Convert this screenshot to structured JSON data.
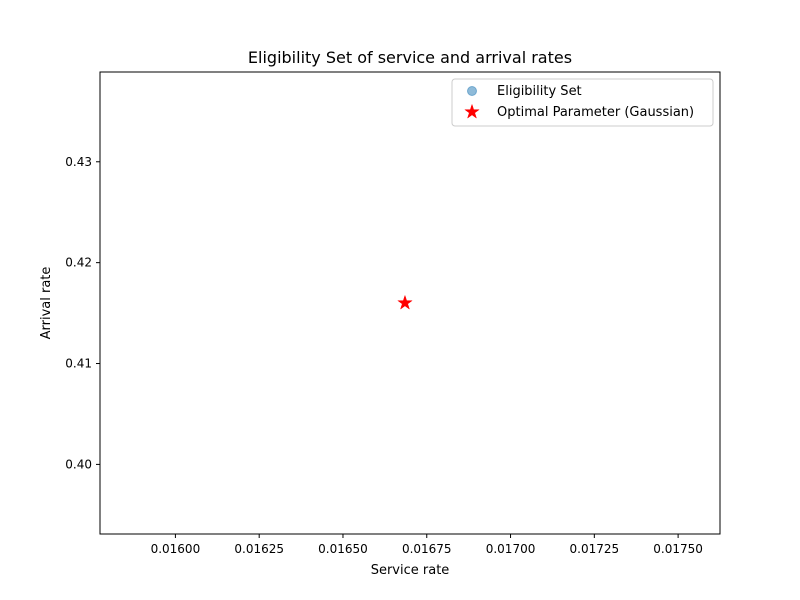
{
  "chart_data": {
    "type": "scatter",
    "title": "Eligibility Set of service and arrival rates",
    "xlabel": "Service rate",
    "ylabel": "Arrival rate",
    "xlim": [
      0.015775,
      0.017625
    ],
    "ylim": [
      0.3931,
      0.4389
    ],
    "x_ticks": [
      "0.01600",
      "0.01625",
      "0.01650",
      "0.01675",
      "0.01700",
      "0.01725",
      "0.01750"
    ],
    "x_tick_values": [
      0.016,
      0.01625,
      0.0165,
      0.01675,
      0.017,
      0.01725,
      0.0175
    ],
    "y_ticks": [
      "0.40",
      "0.41",
      "0.42",
      "0.43"
    ],
    "y_tick_values": [
      0.4,
      0.41,
      0.42,
      0.43
    ],
    "grid": false,
    "legend_position": "top-right",
    "series": [
      {
        "name": "Eligibility Set",
        "marker": "circle",
        "color": "#1f77b4",
        "alpha": 0.5,
        "points": []
      },
      {
        "name": "Optimal Parameter (Gaussian)",
        "marker": "star",
        "color": "#ff0000",
        "points": [
          {
            "x": 0.016685,
            "y": 0.416
          }
        ]
      }
    ]
  }
}
